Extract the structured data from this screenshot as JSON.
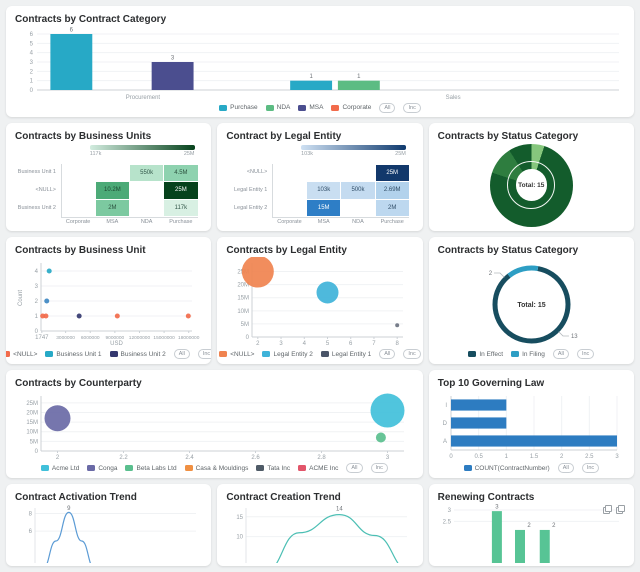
{
  "page": {
    "background": "#eff1f2"
  },
  "chart_data": [
    {
      "id": "contract-category",
      "type": "bar",
      "title": "Contracts by Contract Category",
      "ylim": [
        0,
        6
      ],
      "yticks": [
        0,
        1,
        2,
        3,
        4,
        5,
        6
      ],
      "bar_width_frac": 0.072,
      "bars": [
        {
          "xf": 0.059,
          "value": 6,
          "series": "Purchase",
          "color": "#27a9c6"
        },
        {
          "xf": 0.233,
          "value": 3,
          "series": "MSA",
          "color": "#4b4e8f"
        },
        {
          "xf": 0.471,
          "value": 1,
          "series": "Purchase",
          "color": "#27a9c6"
        },
        {
          "xf": 0.553,
          "value": 1,
          "series": "NDA",
          "color": "#5cbc83"
        }
      ],
      "categories": [
        {
          "label": "Procurement",
          "xf": 0.182
        },
        {
          "label": "Sales",
          "xf": 0.715
        }
      ],
      "legend": [
        {
          "label": "Purchase",
          "color": "#27a9c6"
        },
        {
          "label": "NDA",
          "color": "#5cbc83"
        },
        {
          "label": "MSA",
          "color": "#4b4e8f"
        },
        {
          "label": "Corporate",
          "color": "#f26b4b"
        }
      ],
      "badges": [
        "All",
        "Inc"
      ]
    },
    {
      "id": "business-units",
      "type": "heatmap",
      "title": "Contracts by Business Units",
      "scale": {
        "min_label": "117k",
        "max_label": "25M",
        "from": "#d2ecdf",
        "to": "#06421c"
      },
      "rows": [
        "Business Unit 1",
        "<NULL>",
        "Business Unit 2"
      ],
      "cols": [
        "Corporate",
        "MSA",
        "NDA",
        "Purchase"
      ],
      "cells": [
        {
          "row": 0,
          "col": 2,
          "label": "550k",
          "color": "#b7e3cb",
          "text": "#33584a"
        },
        {
          "row": 0,
          "col": 3,
          "label": "4.5M",
          "color": "#8ed2af",
          "text": "#2c523f"
        },
        {
          "row": 1,
          "col": 1,
          "label": "10.2M",
          "color": "#4caa77",
          "text": "#1d4631"
        },
        {
          "row": 1,
          "col": 3,
          "label": "25M",
          "color": "#06421c",
          "text": "#ffffff"
        },
        {
          "row": 2,
          "col": 1,
          "label": "2M",
          "color": "#7cc9a0",
          "text": "#2c523f"
        },
        {
          "row": 2,
          "col": 3,
          "label": "117k",
          "color": "#d8f0e3",
          "text": "#33584a"
        }
      ]
    },
    {
      "id": "legal-entity-heatmap",
      "type": "heatmap",
      "title": "Contract by Legal Entity",
      "scale": {
        "min_label": "103k",
        "max_label": "25M",
        "from": "#cfe1f3",
        "to": "#0f3a6e"
      },
      "rows": [
        "<NULL>",
        "Legal Entity 1",
        "Legal Entity 2"
      ],
      "cols": [
        "Corporate",
        "MSA",
        "NDA",
        "Purchase"
      ],
      "cells": [
        {
          "row": 0,
          "col": 3,
          "label": "25M",
          "color": "#12386b",
          "text": "#ffffff"
        },
        {
          "row": 1,
          "col": 1,
          "label": "103k",
          "color": "#c9def1",
          "text": "#2f4c66"
        },
        {
          "row": 1,
          "col": 2,
          "label": "500k",
          "color": "#c4dbf0",
          "text": "#2f4c66"
        },
        {
          "row": 1,
          "col": 3,
          "label": "2.69M",
          "color": "#b2d2ec",
          "text": "#2f4c66"
        },
        {
          "row": 2,
          "col": 1,
          "label": "15M",
          "color": "#2e7ec6",
          "text": "#ffffff"
        },
        {
          "row": 2,
          "col": 3,
          "label": "2M",
          "color": "#bdd8ef",
          "text": "#2f4c66"
        }
      ]
    },
    {
      "id": "status-sunburst",
      "type": "sunburst",
      "title": "Contracts by Status Category",
      "center_label": "Total: 15",
      "segments": [
        {
          "value": 5,
          "color": "#86c77d"
        },
        {
          "value": 75,
          "color": "#135c2c"
        },
        {
          "value": 11,
          "color": "#2e7d3f"
        },
        {
          "value": 9,
          "color": "#135c2c"
        }
      ]
    },
    {
      "id": "business-unit-scatter",
      "type": "scatter",
      "title": "Contracts by Business Unit",
      "xlabel": "USD",
      "ylabel": "Count",
      "xlim": [
        0,
        18400000
      ],
      "xticks": [
        {
          "v": 100000,
          "t": "1747"
        },
        {
          "v": 3000000,
          "t": "3000000"
        },
        {
          "v": 6000000,
          "t": "6000000"
        },
        {
          "v": 9000000,
          "t": "9000000"
        },
        {
          "v": 12000000,
          "t": "12000000"
        },
        {
          "v": 15000000,
          "t": "15000000"
        },
        {
          "v": 18000000,
          "t": "18000000"
        }
      ],
      "ylim": [
        0,
        4.4
      ],
      "yticks": [
        {
          "v": 0,
          "t": "0"
        },
        {
          "v": 1,
          "t": "1"
        },
        {
          "v": 2,
          "t": "2"
        },
        {
          "v": 3,
          "t": "3"
        },
        {
          "v": 4,
          "t": "4"
        }
      ],
      "points": [
        {
          "x": 1000000,
          "y": 4,
          "r": 2.5,
          "color": "#27a9c6"
        },
        {
          "x": 700000,
          "y": 2,
          "r": 2.5,
          "color": "#3d87c2"
        },
        {
          "x": 200000,
          "y": 1,
          "r": 2.5,
          "color": "#f26b4b"
        },
        {
          "x": 600000,
          "y": 1,
          "r": 2.5,
          "color": "#f26b4b"
        },
        {
          "x": 4650000,
          "y": 1,
          "r": 2.5,
          "color": "#34386f"
        },
        {
          "x": 9300000,
          "y": 1,
          "r": 2.5,
          "color": "#f26b4b"
        },
        {
          "x": 17950000,
          "y": 1,
          "r": 2.5,
          "color": "#f26b4b"
        }
      ],
      "legend": [
        {
          "label": "<NULL>",
          "color": "#f26b4b"
        },
        {
          "label": "Business Unit 1",
          "color": "#27a9c6"
        },
        {
          "label": "Business Unit 2",
          "color": "#34386f"
        }
      ],
      "badges": [
        "All",
        "Inc"
      ]
    },
    {
      "id": "legal-entity-bubble",
      "type": "scatter",
      "title": "Contracts by Legal Entity",
      "xlim": [
        1.75,
        8.25
      ],
      "xticks": [
        {
          "v": 2,
          "t": "2"
        },
        {
          "v": 3,
          "t": "3"
        },
        {
          "v": 4,
          "t": "4"
        },
        {
          "v": 5,
          "t": "5"
        },
        {
          "v": 6,
          "t": "6"
        },
        {
          "v": 7,
          "t": "7"
        },
        {
          "v": 8,
          "t": "8"
        }
      ],
      "ylim": [
        0,
        27500000
      ],
      "yticks": [
        {
          "v": 0,
          "t": "0"
        },
        {
          "v": 5000000,
          "t": "5M"
        },
        {
          "v": 10000000,
          "t": "10M"
        },
        {
          "v": 15000000,
          "t": "15M"
        },
        {
          "v": 20000000,
          "t": "20M"
        },
        {
          "v": 25000000,
          "t": "25M"
        }
      ],
      "points": [
        {
          "x": 2,
          "y": 25000000,
          "r": 16,
          "color": "#f0834f"
        },
        {
          "x": 5,
          "y": 17000000,
          "r": 11,
          "color": "#3fb3d9"
        },
        {
          "x": 8,
          "y": 4500000,
          "r": 2,
          "color": "#6b7280"
        }
      ],
      "legend": [
        {
          "label": "<NULL>",
          "color": "#f0834f"
        },
        {
          "label": "Legal Entity 2",
          "color": "#3fb3d9"
        },
        {
          "label": "Legal Entity 1",
          "color": "#4a5568"
        }
      ],
      "badges": [
        "All",
        "Inc"
      ]
    },
    {
      "id": "status-ring",
      "type": "ring",
      "title": "Contracts by Status Category",
      "center_label": "Total: 15",
      "segments": [
        {
          "label": "In Filing",
          "value": 2,
          "color": "#2d9ec4"
        },
        {
          "label": "In Effect",
          "value": 13,
          "color": "#174d5f"
        }
      ],
      "callouts": [
        {
          "text": "2"
        },
        {
          "text": "13"
        }
      ],
      "legend": [
        {
          "label": "In Effect",
          "color": "#174d5f"
        },
        {
          "label": "In Filing",
          "color": "#2d9ec4"
        }
      ],
      "badges": [
        "All",
        "Inc"
      ]
    },
    {
      "id": "counterparty",
      "type": "scatter",
      "title": "Contracts by Counterparty",
      "xlim": [
        1.95,
        3.05
      ],
      "xticks": [
        {
          "v": 2,
          "t": "2"
        },
        {
          "v": 2.2,
          "t": "2.2"
        },
        {
          "v": 2.4,
          "t": "2.4"
        },
        {
          "v": 2.6,
          "t": "2.6"
        },
        {
          "v": 2.8,
          "t": "2.8"
        },
        {
          "v": 3,
          "t": "3"
        }
      ],
      "ylim": [
        0,
        27500000
      ],
      "yticks": [
        {
          "v": 0,
          "t": "0"
        },
        {
          "v": 5000000,
          "t": "5M"
        },
        {
          "v": 10000000,
          "t": "10M"
        },
        {
          "v": 15000000,
          "t": "15M"
        },
        {
          "v": 20000000,
          "t": "20M"
        },
        {
          "v": 25000000,
          "t": "25M"
        }
      ],
      "points": [
        {
          "x": 2,
          "y": 17000000,
          "r": 13,
          "color": "#6a6aa6"
        },
        {
          "x": 3,
          "y": 21000000,
          "r": 17,
          "color": "#41c0da"
        },
        {
          "x": 2.98,
          "y": 7000000,
          "r": 5,
          "color": "#5abf8e"
        }
      ],
      "legend": [
        {
          "label": "Acme Ltd",
          "color": "#41c0da"
        },
        {
          "label": "Conga",
          "color": "#6a6aa6"
        },
        {
          "label": "Beta Labs Ltd",
          "color": "#5abf8e"
        },
        {
          "label": "Casa & Mouldings",
          "color": "#f09043"
        },
        {
          "label": "Tata Inc",
          "color": "#4f5b67"
        },
        {
          "label": "ACME Inc",
          "color": "#e2556a"
        }
      ],
      "badges": [
        "All",
        "Inc"
      ]
    },
    {
      "id": "governing-law",
      "type": "hbar",
      "title": "Top 10 Governing Law",
      "categories": [
        "I",
        "D",
        "A"
      ],
      "values": [
        1,
        1,
        3
      ],
      "xlim": [
        0,
        3
      ],
      "xticks": [
        {
          "v": 0,
          "t": "0"
        },
        {
          "v": 0.5,
          "t": "0.5"
        },
        {
          "v": 1,
          "t": "1"
        },
        {
          "v": 1.5,
          "t": "1.5"
        },
        {
          "v": 2,
          "t": "2"
        },
        {
          "v": 2.5,
          "t": "2.5"
        },
        {
          "v": 3,
          "t": "3"
        }
      ],
      "color": "#2d7cc1",
      "legend": [
        {
          "label": "COUNT(ContractNumber)",
          "color": "#2d7cc1"
        }
      ],
      "badges": [
        "All",
        "Inc"
      ]
    },
    {
      "id": "activation-trend",
      "type": "line",
      "title": "Contract Activation Trend",
      "color": "#5b9bd5",
      "yticks": [
        {
          "f": 0.1,
          "t": "8"
        },
        {
          "f": 0.42,
          "t": "6"
        }
      ],
      "peak_label": "9",
      "path": [
        [
          0.05,
          1.1
        ],
        [
          0.13,
          0.6
        ],
        [
          0.21,
          0.08
        ],
        [
          0.29,
          0.6
        ],
        [
          0.37,
          1.1
        ]
      ]
    },
    {
      "id": "creation-trend",
      "type": "line",
      "title": "Contract Creation Trend",
      "color": "#4cbfb4",
      "yticks": [
        {
          "f": 0.16,
          "t": "15"
        },
        {
          "f": 0.52,
          "t": "10"
        }
      ],
      "peak_label": "14",
      "path": [
        [
          0.12,
          1.15
        ],
        [
          0.33,
          0.45
        ],
        [
          0.58,
          0.12
        ],
        [
          0.8,
          0.5
        ],
        [
          1.02,
          1.15
        ]
      ]
    },
    {
      "id": "renewing-contracts",
      "type": "minibar",
      "title": "Renewing Contracts",
      "color": "#57c495",
      "yticks": [
        {
          "f": 0.07,
          "t": "3"
        },
        {
          "f": 0.27,
          "t": "2.5"
        }
      ],
      "bars": [
        {
          "xf": 0.26,
          "label": "3",
          "top_f": 0.09,
          "label_f": 0.04
        },
        {
          "xf": 0.4,
          "label": "2",
          "top_f": 0.42,
          "label_f": 0.37
        },
        {
          "xf": 0.55,
          "label": "2",
          "top_f": 0.42,
          "label_f": 0.37
        }
      ],
      "icons": [
        "snapshot-icon",
        "copy-icon"
      ]
    }
  ]
}
